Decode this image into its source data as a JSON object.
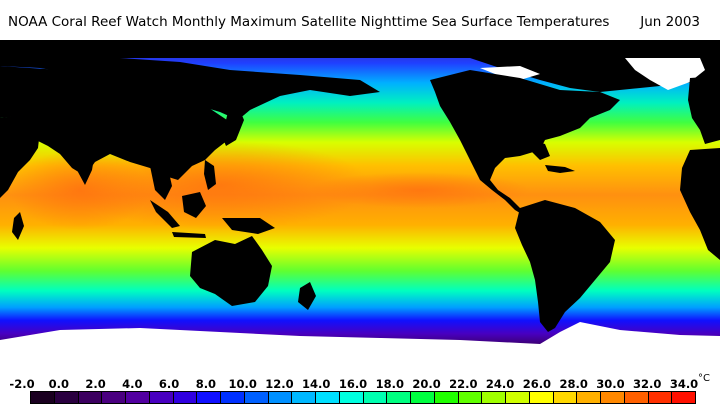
{
  "title": "NOAA Coral Reef Watch Monthly Maximum Satellite Nighttime Sea Surface Temperatures",
  "date": "Jun 2003",
  "legend": {
    "ticks": [
      "-2.0",
      "0.0",
      "2.0",
      "4.0",
      "6.0",
      "8.0",
      "10.0",
      "12.0",
      "14.0",
      "16.0",
      "18.0",
      "20.0",
      "22.0",
      "24.0",
      "26.0",
      "28.0",
      "30.0",
      "32.0",
      "34.0"
    ],
    "unit": "°C",
    "swatches": [
      "#1a0020",
      "#2a0040",
      "#3c0060",
      "#4a0080",
      "#5200a0",
      "#4800c0",
      "#3000e0",
      "#1010ff",
      "#0030ff",
      "#0060ff",
      "#0090ff",
      "#00b8ff",
      "#00e0ff",
      "#00ffe0",
      "#00ffb0",
      "#00ff80",
      "#00ff40",
      "#20ff00",
      "#60ff00",
      "#a0ff00",
      "#d0ff00",
      "#ffff00",
      "#ffd800",
      "#ffb000",
      "#ff8800",
      "#ff6000",
      "#ff3000",
      "#ff1000"
    ]
  },
  "colors": {
    "land": "#000000",
    "ice": "#ffffff",
    "ocean_warm": "#ff7a10",
    "ocean_cold": "#4000a0"
  }
}
